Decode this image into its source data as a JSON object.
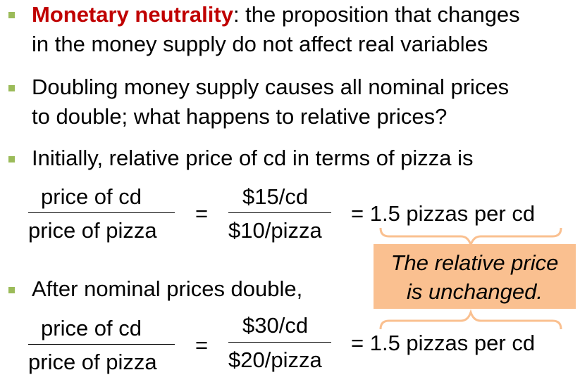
{
  "colors": {
    "bullet": "#9bbb59",
    "emphasis": "#c00000",
    "callout_fill": "#fac090"
  },
  "bullets": [
    {
      "term": "Monetary neutrality",
      "line1_rest": ":  the proposition that changes",
      "line2": "in the money supply do not affect real variables"
    },
    {
      "line1": "Doubling money supply causes all nominal prices",
      "line2": "to double;  what happens to relative prices?"
    },
    {
      "line1": "Initially, relative price of cd in terms of pizza is"
    },
    {
      "line1": "After nominal prices double,"
    }
  ],
  "equations": [
    {
      "numerator": "price of cd",
      "denominator": "price of pizza",
      "equals": "=",
      "value_numerator": "$15/cd",
      "value_denominator": "$10/pizza",
      "result": "=  1.5 pizzas per cd"
    },
    {
      "numerator": "price of cd",
      "denominator": "price of pizza",
      "equals": "=",
      "value_numerator": "$30/cd",
      "value_denominator": "$20/pizza",
      "result": "=  1.5 pizzas per cd"
    }
  ],
  "callout": {
    "line1": "The relative price",
    "line2": "is unchanged."
  }
}
